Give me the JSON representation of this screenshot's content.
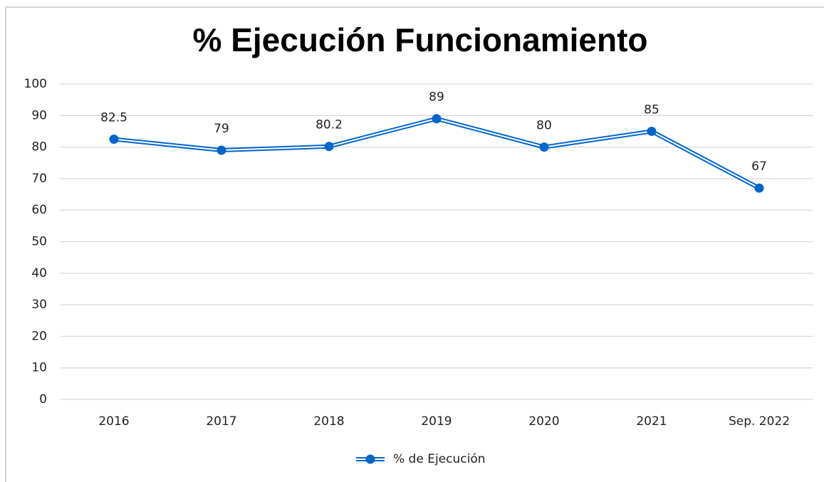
{
  "chart_data": {
    "type": "line",
    "title": "% Ejecución Funcionamiento",
    "categories": [
      "2016",
      "2017",
      "2018",
      "2019",
      "2020",
      "2021",
      "Sep. 2022"
    ],
    "series": [
      {
        "name": "% de Ejecución",
        "color": "#0066cc",
        "values": [
          82.5,
          79,
          80.2,
          89,
          80,
          85,
          67
        ]
      }
    ],
    "ylim": [
      0,
      100
    ],
    "yticks": [
      0,
      10,
      20,
      30,
      40,
      50,
      60,
      70,
      80,
      90,
      100
    ],
    "grid": true,
    "legend": "bottom"
  }
}
